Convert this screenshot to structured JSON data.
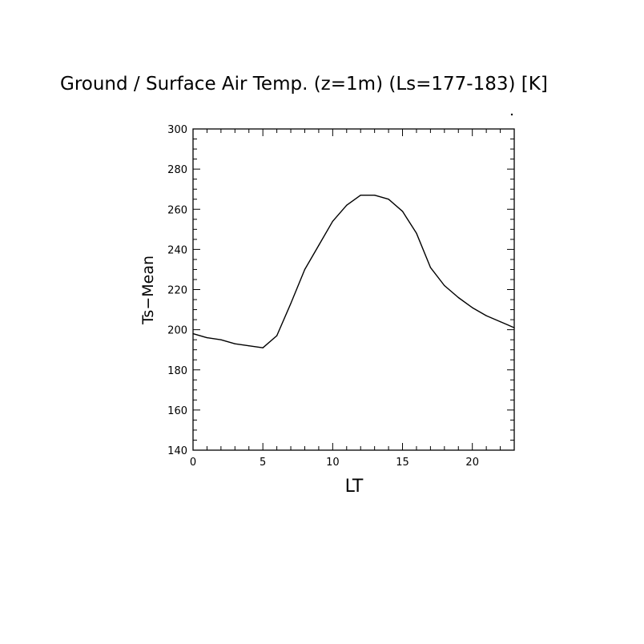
{
  "chart_data": {
    "type": "line",
    "title": "Ground / Surface Air Temp. (z=1m) (Ls=177-183) [K]",
    "xlabel": "LT",
    "ylabel": "Ts−Mean",
    "xlim": [
      0,
      23
    ],
    "ylim": [
      140,
      300
    ],
    "xticks": [
      0,
      5,
      10,
      15,
      20
    ],
    "yticks": [
      140,
      160,
      180,
      200,
      220,
      240,
      260,
      280,
      300
    ],
    "grid": false,
    "series": [
      {
        "x": [
          0,
          1,
          2,
          3,
          4,
          5,
          6,
          7,
          8,
          9,
          10,
          11,
          12,
          13,
          14,
          15,
          16,
          17,
          18,
          19,
          20,
          21,
          22,
          23
        ],
        "y": [
          198,
          196,
          195,
          193,
          192,
          191,
          197,
          213,
          230,
          242,
          254,
          262,
          267,
          267,
          265,
          259,
          248,
          231,
          222,
          216,
          211,
          207,
          204,
          201
        ],
        "color": "#000000"
      }
    ]
  }
}
